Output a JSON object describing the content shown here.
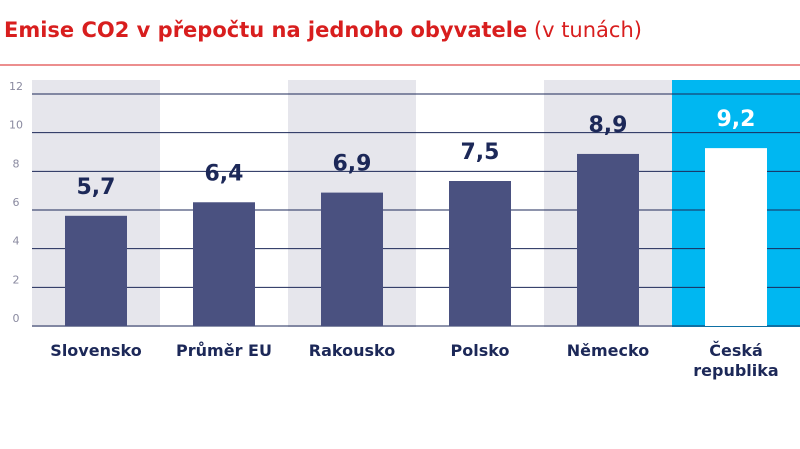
{
  "chart_data": {
    "type": "bar",
    "title": "Emise CO2 v přepočtu na jednoho obyvatele",
    "subtitle": "(v tunách)",
    "categories": [
      "Slovensko",
      "Průměr EU",
      "Rakousko",
      "Polsko",
      "Německo",
      "Česká republika"
    ],
    "values": [
      5.7,
      6.4,
      6.9,
      7.5,
      8.9,
      9.2
    ],
    "value_labels": [
      "5,7",
      "6,4",
      "6,9",
      "7,5",
      "8,9",
      "9,2"
    ],
    "colors": [
      "#4a5180",
      "#4a5180",
      "#4a5180",
      "#4a5180",
      "#4a5180",
      "#ffffff"
    ],
    "band_colors": [
      "#e6e6ec",
      "#ffffff",
      "#e6e6ec",
      "#ffffff",
      "#e6e6ec",
      "#00b7f1"
    ],
    "ylim": [
      0,
      12
    ],
    "yticks": [
      0,
      2,
      4,
      6,
      8,
      10,
      12
    ],
    "grid": true
  }
}
